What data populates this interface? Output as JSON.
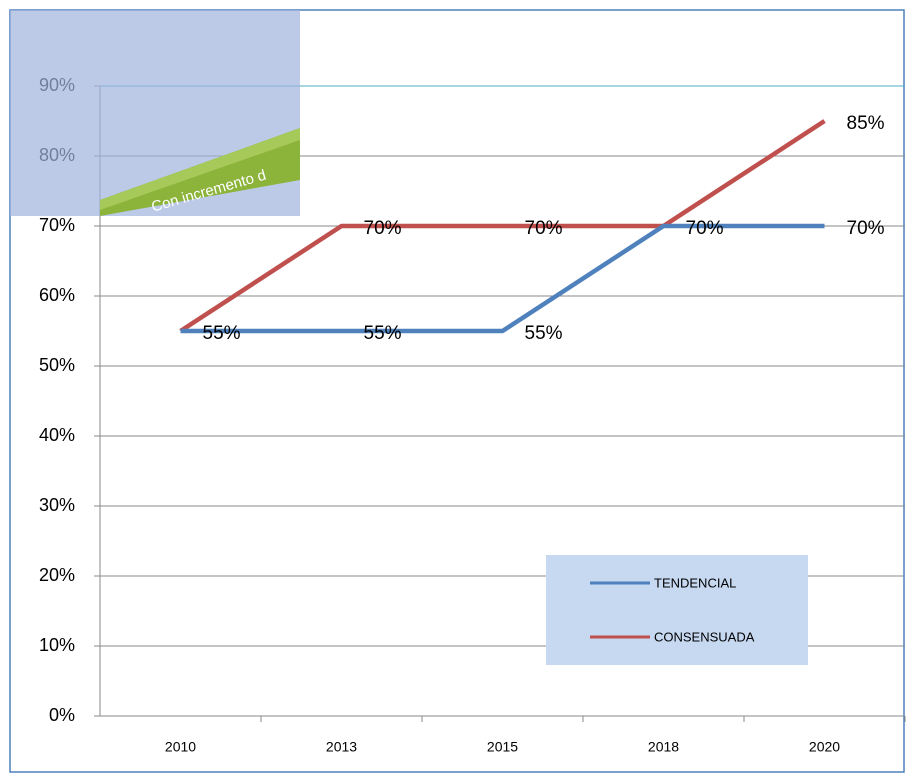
{
  "chart_data": {
    "type": "line",
    "annotation": "Con incremento d",
    "categories": [
      "2010",
      "2013",
      "2015",
      "2018",
      "2020"
    ],
    "series": [
      {
        "name": "TENDENCIAL",
        "color": "#4f81bd",
        "values": [
          55,
          55,
          55,
          70,
          70
        ],
        "value_labels": [
          "55%",
          "55%",
          "55%",
          "70%",
          "70%"
        ]
      },
      {
        "name": "CONSENSUADA",
        "color": "#c0504d",
        "values": [
          55,
          70,
          70,
          70,
          85
        ],
        "value_labels": [
          null,
          "70%",
          "70%",
          null,
          "85%"
        ]
      }
    ],
    "ylim": [
      0,
      90
    ],
    "yticks": [
      {
        "value": 0,
        "label": "0%"
      },
      {
        "value": 10,
        "label": "10%"
      },
      {
        "value": 20,
        "label": "20%"
      },
      {
        "value": 30,
        "label": "30%"
      },
      {
        "value": 40,
        "label": "40%"
      },
      {
        "value": 50,
        "label": "50%"
      },
      {
        "value": 60,
        "label": "60%"
      },
      {
        "value": 70,
        "label": "70%"
      },
      {
        "value": 80,
        "label": "80%"
      },
      {
        "value": 90,
        "label": "90%"
      }
    ],
    "grid": true,
    "legend": "lower right"
  }
}
